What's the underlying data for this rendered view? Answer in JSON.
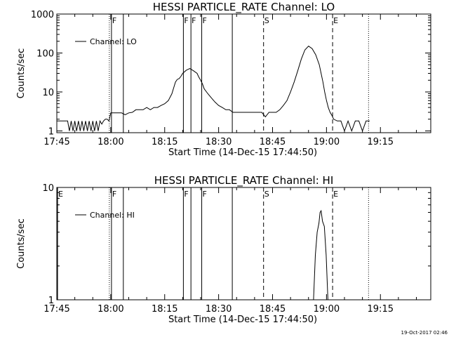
{
  "footer": {
    "timestamp": "19-Oct-2017 02:46"
  },
  "chart_data": [
    {
      "type": "line",
      "title": "HESSI PARTICLE_RATE Channel: LO",
      "xlabel": "Start Time (14-Dec-15 17:44:50)",
      "ylabel": "Counts/sec",
      "x_ticks": [
        "17:45",
        "18:00",
        "18:15",
        "18:30",
        "18:45",
        "19:00",
        "19:15"
      ],
      "x_tick_minutes": [
        45,
        60,
        75,
        90,
        105,
        120,
        135
      ],
      "xlim_minutes": [
        45,
        149
      ],
      "y_scale": "log",
      "ylim": [
        0.9,
        1000
      ],
      "y_ticks": [
        "1",
        "10",
        "100",
        "1000"
      ],
      "legend": {
        "position": "top-left",
        "entries": [
          "Channel: LO"
        ]
      },
      "markers": [
        {
          "minute": 59.6,
          "label": "",
          "style": "dotted"
        },
        {
          "minute": 60.2,
          "label": "F",
          "style": "solid"
        },
        {
          "minute": 63.5,
          "label": "",
          "style": "solid"
        },
        {
          "minute": 80.2,
          "label": "F",
          "style": "solid"
        },
        {
          "minute": 82.3,
          "label": "F",
          "style": "solid"
        },
        {
          "minute": 85.3,
          "label": "F",
          "style": "solid"
        },
        {
          "minute": 93.8,
          "label": "",
          "style": "solid"
        },
        {
          "minute": 102.5,
          "label": "S",
          "style": "dashed"
        },
        {
          "minute": 121.7,
          "label": "E",
          "style": "dashed"
        },
        {
          "minute": 131.7,
          "label": "",
          "style": "dotted"
        }
      ],
      "series": [
        {
          "x_minutes": [
            45,
            48,
            48.5,
            49,
            49.5,
            50,
            50.5,
            51,
            51.5,
            52,
            52.5,
            53,
            53.5,
            54,
            54.5,
            55,
            55.5,
            56,
            56.5,
            57,
            57.5,
            58,
            58.5,
            59,
            59.5,
            60,
            61,
            62,
            63,
            64,
            65,
            66,
            67,
            68,
            69,
            70,
            71,
            72,
            73,
            74,
            75,
            76,
            77,
            78,
            78.5,
            79,
            79.5,
            80,
            81,
            82,
            83,
            84,
            84.5,
            85,
            85.5,
            86,
            87,
            88,
            89,
            90,
            91,
            92,
            93,
            94,
            96,
            98,
            100,
            101,
            102,
            103,
            104,
            105,
            106,
            107,
            108,
            109,
            110,
            111,
            112,
            113,
            114,
            115,
            116,
            117,
            118,
            118.5,
            119,
            119.5,
            120,
            120.5,
            121,
            121.5,
            122,
            123,
            124,
            125,
            126,
            127,
            128,
            129,
            130,
            131,
            132
          ],
          "y": [
            1.8,
            1.8,
            1,
            1.8,
            1,
            1.8,
            1,
            1.8,
            1,
            1.8,
            1,
            1.8,
            1,
            1.8,
            1,
            1.8,
            1,
            1.8,
            1,
            1.8,
            1.5,
            1.8,
            2,
            2,
            1.8,
            2.9,
            2.9,
            2.9,
            2.9,
            2.6,
            2.9,
            3,
            3.5,
            3.5,
            3.5,
            4,
            3.5,
            4,
            4,
            4.5,
            5,
            6,
            9,
            18,
            21,
            22,
            25,
            30,
            36,
            40,
            35,
            30,
            24,
            20,
            16,
            12,
            9,
            7,
            5.5,
            4.5,
            4,
            3.5,
            3.5,
            3,
            3,
            3,
            3,
            3,
            3,
            2.3,
            3,
            3,
            3,
            3.5,
            4.5,
            6,
            10,
            18,
            35,
            70,
            120,
            150,
            130,
            90,
            50,
            30,
            18,
            10,
            6,
            4,
            3,
            2.5,
            2,
            1.8,
            1.8,
            1,
            1.8,
            1,
            1.8,
            1.8,
            1,
            1.8,
            1.8
          ]
        }
      ]
    },
    {
      "type": "line",
      "title": "HESSI PARTICLE_RATE Channel: HI",
      "xlabel": "Start Time (14-Dec-15 17:44:50)",
      "ylabel": "Counts/sec",
      "x_ticks": [
        "17:45",
        "18:00",
        "18:15",
        "18:30",
        "18:45",
        "19:00",
        "19:15"
      ],
      "x_tick_minutes": [
        45,
        60,
        75,
        90,
        105,
        120,
        135
      ],
      "xlim_minutes": [
        45,
        149
      ],
      "y_scale": "log",
      "ylim": [
        1,
        10
      ],
      "y_ticks": [
        "1",
        "10"
      ],
      "legend": {
        "position": "top-left",
        "entries": [
          "Channel: HI"
        ]
      },
      "markers": [
        {
          "minute": 45.2,
          "label": "E",
          "style": "solid"
        },
        {
          "minute": 59.6,
          "label": "",
          "style": "dotted"
        },
        {
          "minute": 60.2,
          "label": "F",
          "style": "solid"
        },
        {
          "minute": 63.5,
          "label": "",
          "style": "solid"
        },
        {
          "minute": 80.2,
          "label": "F",
          "style": "solid"
        },
        {
          "minute": 82.3,
          "label": "",
          "style": "solid"
        },
        {
          "minute": 85.3,
          "label": "F",
          "style": "solid"
        },
        {
          "minute": 93.8,
          "label": "",
          "style": "solid"
        },
        {
          "minute": 102.5,
          "label": "S",
          "style": "dashed"
        },
        {
          "minute": 121.7,
          "label": "E",
          "style": "dashed"
        },
        {
          "minute": 131.7,
          "label": "",
          "style": "dotted"
        }
      ],
      "series": [
        {
          "x_minutes": [
            116.4,
            116.9,
            117.4,
            117.9,
            118.2,
            118.5,
            118.9,
            119.4,
            119.9,
            120.4
          ],
          "y": [
            1,
            2.5,
            4,
            4.8,
            6,
            6.2,
            5,
            4.5,
            2.5,
            1
          ]
        }
      ]
    }
  ]
}
